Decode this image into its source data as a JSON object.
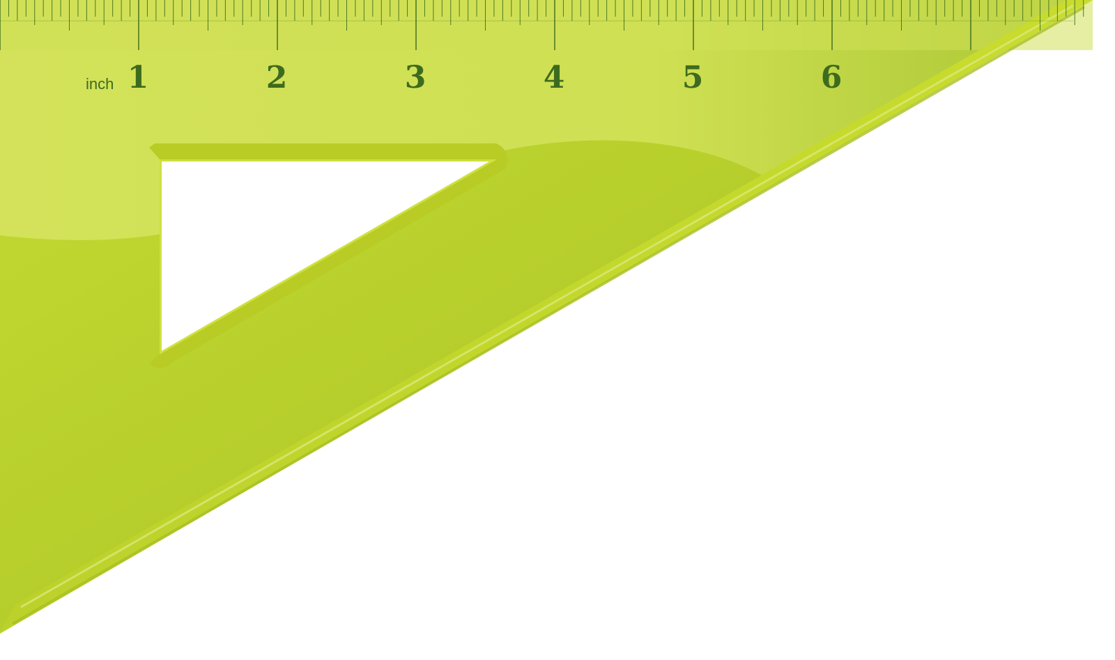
{
  "ruler": {
    "unit_label": "inch",
    "numbers": [
      "1",
      "2",
      "3",
      "4",
      "5",
      "6"
    ],
    "colors": {
      "body": "#bcd32c",
      "body_dark": "#afc62a",
      "highlight": "#d4e35a",
      "label": "#3d6b1e",
      "tick": "#4e7a24"
    }
  }
}
